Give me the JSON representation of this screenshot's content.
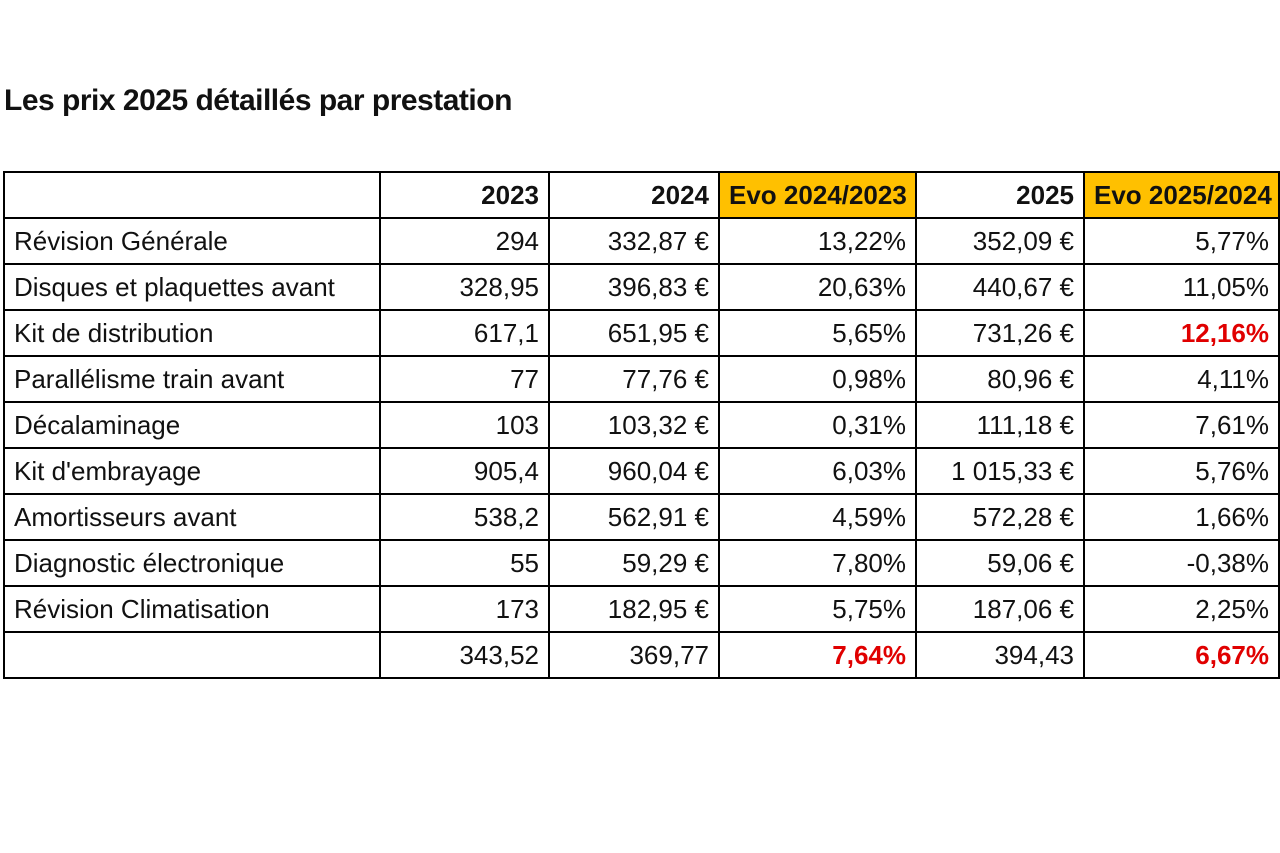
{
  "title": "Les prix 2025 détaillés par prestation",
  "colors": {
    "header_highlight": "#ffc000",
    "value_highlight": "#e00000"
  },
  "table": {
    "headers": [
      "",
      "2023",
      "2024",
      "Evo 2024/2023",
      "2025",
      "Evo 2025/2024"
    ],
    "rows": [
      {
        "label": "Révision Générale",
        "y2023": "294",
        "y2024": "332,87 €",
        "evo1": "13,22%",
        "y2025": "352,09 €",
        "evo2": "5,77%"
      },
      {
        "label": "Disques et plaquettes avant",
        "y2023": "328,95",
        "y2024": "396,83 €",
        "evo1": "20,63%",
        "y2025": "440,67 €",
        "evo2": "11,05%"
      },
      {
        "label": "Kit de distribution",
        "y2023": "617,1",
        "y2024": "651,95 €",
        "evo1": "5,65%",
        "y2025": "731,26 €",
        "evo2": "12,16%"
      },
      {
        "label": "Parallélisme train avant",
        "y2023": "77",
        "y2024": "77,76 €",
        "evo1": "0,98%",
        "y2025": "80,96 €",
        "evo2": "4,11%"
      },
      {
        "label": "Décalaminage",
        "y2023": "103",
        "y2024": "103,32 €",
        "evo1": "0,31%",
        "y2025": "111,18 €",
        "evo2": "7,61%"
      },
      {
        "label": "Kit d'embrayage",
        "y2023": "905,4",
        "y2024": "960,04 €",
        "evo1": "6,03%",
        "y2025": "1 015,33 €",
        "evo2": "5,76%"
      },
      {
        "label": "Amortisseurs avant",
        "y2023": "538,2",
        "y2024": "562,91 €",
        "evo1": "4,59%",
        "y2025": "572,28 €",
        "evo2": "1,66%"
      },
      {
        "label": "Diagnostic électronique",
        "y2023": "55",
        "y2024": "59,29 €",
        "evo1": "7,80%",
        "y2025": "59,06 €",
        "evo2": "-0,38%"
      },
      {
        "label": "Révision Climatisation",
        "y2023": "173",
        "y2024": "182,95 €",
        "evo1": "5,75%",
        "y2025": "187,06 €",
        "evo2": "2,25%"
      },
      {
        "label": "",
        "y2023": "343,52",
        "y2024": "369,77",
        "evo1": "7,64%",
        "y2025": "394,43",
        "evo2": "6,67%"
      }
    ]
  }
}
